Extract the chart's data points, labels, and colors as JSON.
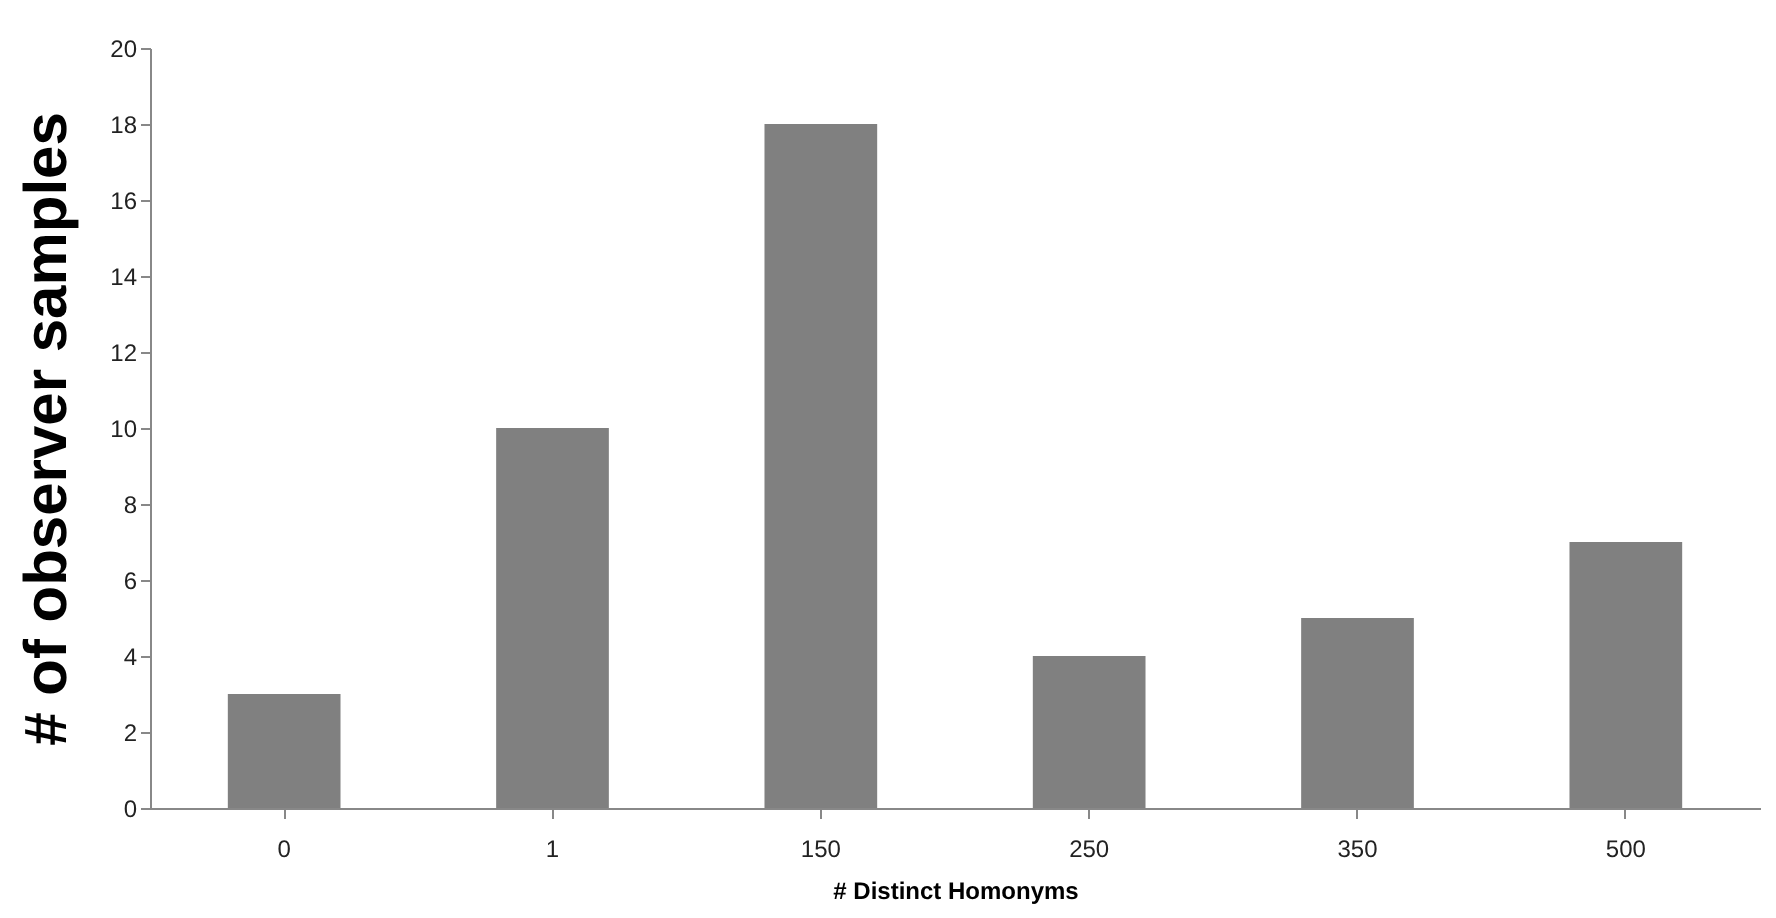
{
  "chart_data": {
    "type": "bar",
    "xlabel": "# Distinct Homonyms",
    "ylabel": "# of observer samples",
    "categories": [
      "0",
      "1",
      "150",
      "250",
      "350",
      "500"
    ],
    "values": [
      3,
      10,
      18,
      4,
      5,
      7
    ],
    "color": "#808080",
    "ylim": [
      0,
      20
    ],
    "yticks": [
      0,
      2,
      4,
      6,
      8,
      10,
      12,
      14,
      16,
      18,
      20
    ],
    "grid": false
  }
}
